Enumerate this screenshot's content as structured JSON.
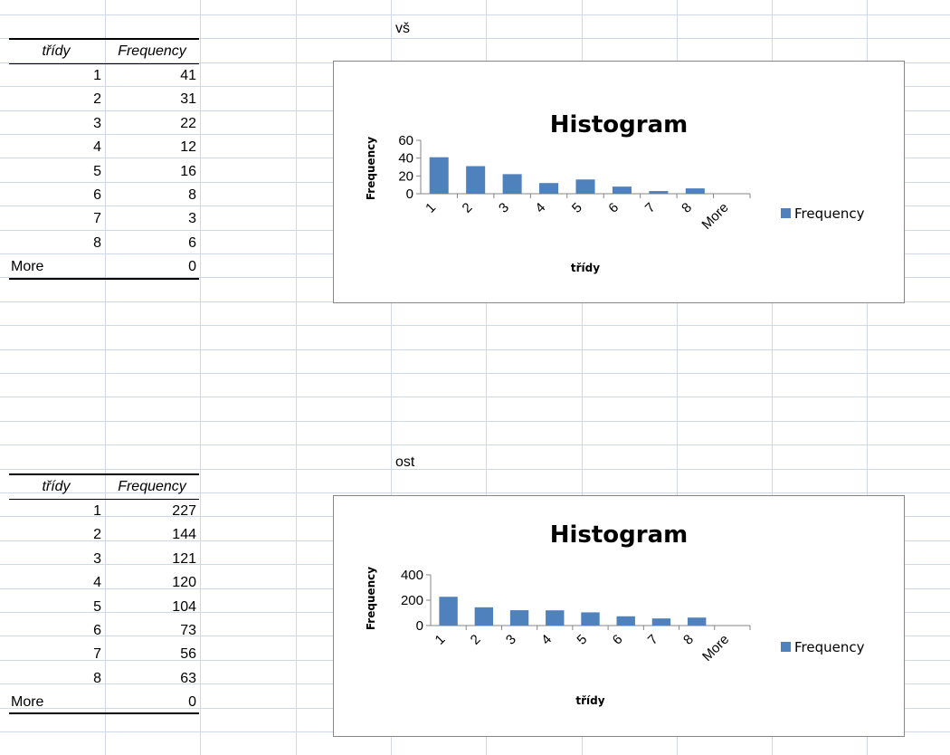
{
  "colors": {
    "bar": "#4f81bd",
    "grid": "#d0d7e5",
    "axis": "#868686"
  },
  "sections": [
    {
      "label": "vš",
      "table": {
        "headers": [
          "třídy",
          "Frequency"
        ],
        "rows": [
          {
            "bin": "1",
            "freq": "41"
          },
          {
            "bin": "2",
            "freq": "31"
          },
          {
            "bin": "3",
            "freq": "22"
          },
          {
            "bin": "4",
            "freq": "12"
          },
          {
            "bin": "5",
            "freq": "16"
          },
          {
            "bin": "6",
            "freq": "8"
          },
          {
            "bin": "7",
            "freq": "3"
          },
          {
            "bin": "8",
            "freq": "6"
          },
          {
            "bin": "More",
            "freq": "0"
          }
        ]
      }
    },
    {
      "label": "ost",
      "table": {
        "headers": [
          "třídy",
          "Frequency"
        ],
        "rows": [
          {
            "bin": "1",
            "freq": "227"
          },
          {
            "bin": "2",
            "freq": "144"
          },
          {
            "bin": "3",
            "freq": "121"
          },
          {
            "bin": "4",
            "freq": "120"
          },
          {
            "bin": "5",
            "freq": "104"
          },
          {
            "bin": "6",
            "freq": "73"
          },
          {
            "bin": "7",
            "freq": "56"
          },
          {
            "bin": "8",
            "freq": "63"
          },
          {
            "bin": "More",
            "freq": "0"
          }
        ]
      }
    }
  ],
  "chart_data": [
    {
      "type": "bar",
      "title": "Histogram",
      "xlabel": "třídy",
      "ylabel": "Frequency",
      "categories": [
        "1",
        "2",
        "3",
        "4",
        "5",
        "6",
        "7",
        "8",
        "More"
      ],
      "series": [
        {
          "name": "Frequency",
          "values": [
            41,
            31,
            22,
            12,
            16,
            8,
            3,
            6,
            0
          ]
        }
      ],
      "ylim": [
        0,
        60
      ],
      "yticks": [
        0,
        20,
        40,
        60
      ],
      "legend": "right",
      "grid": false
    },
    {
      "type": "bar",
      "title": "Histogram",
      "xlabel": "třídy",
      "ylabel": "Frequency",
      "categories": [
        "1",
        "2",
        "3",
        "4",
        "5",
        "6",
        "7",
        "8",
        "More"
      ],
      "series": [
        {
          "name": "Frequency",
          "values": [
            227,
            144,
            121,
            120,
            104,
            73,
            56,
            63,
            0
          ]
        }
      ],
      "ylim": [
        0,
        400
      ],
      "yticks": [
        0,
        200,
        400
      ],
      "legend": "right",
      "grid": false
    }
  ]
}
